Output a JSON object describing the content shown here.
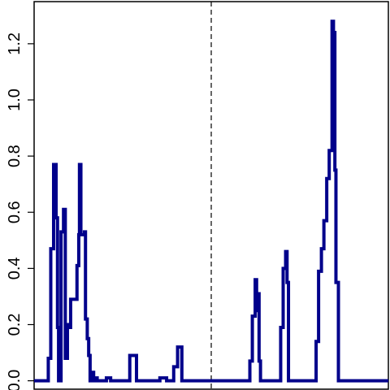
{
  "chart_data": {
    "type": "line",
    "title": "",
    "xlabel": "",
    "ylabel": "",
    "ylim": [
      -0.03,
      1.35
    ],
    "xlim": [
      0,
      100
    ],
    "x_ticks_labeled": false,
    "y_ticks": [
      0.0,
      0.2,
      0.4,
      0.6,
      0.8,
      1.0,
      1.2
    ],
    "y_tick_labels": [
      "0.0",
      "0.2",
      "0.4",
      "0.6",
      "0.8",
      "1.0",
      "1.2"
    ],
    "grid": false,
    "line_style": "step",
    "reference_line": {
      "x": 50,
      "style": "dashed",
      "color": "#000000"
    },
    "series": [
      {
        "color": "#00008B",
        "x": [
          0,
          4.0,
          4.7,
          5.5,
          6.2,
          6.6,
          6.9,
          7.6,
          8.3,
          8.8,
          9.4,
          9.6,
          10.3,
          12.1,
          12.6,
          12.8,
          13.2,
          14.2,
          14.5,
          15.0,
          15.4,
          15.8,
          16.1,
          16.5,
          16.8,
          17.1,
          17.4,
          17.8,
          18.1,
          18.5,
          18.9,
          19.3,
          20.4,
          21.6,
          23.4,
          25.0,
          27.0,
          28.9,
          35.5,
          37.4,
          39.4,
          40.5,
          41.7,
          43.5,
          46.4,
          48.4,
          60.9,
          61.6,
          62.4,
          62.8,
          63.2,
          63.5,
          63.9,
          64.3,
          65.0,
          69.6,
          70.3,
          71.0,
          71.4,
          71.8,
          72.6,
          79.6,
          80.3,
          81.1,
          81.8,
          82.6,
          83.3,
          84.1,
          84.5,
          84.9,
          85.2,
          85.9,
          86.7,
          87.4,
          100
        ],
        "y": [
          0.0,
          0.08,
          0.47,
          0.77,
          0.58,
          0.19,
          0.0,
          0.53,
          0.61,
          0.08,
          0.2,
          0.19,
          0.29,
          0.41,
          0.52,
          0.77,
          0.52,
          0.53,
          0.22,
          0.15,
          0.09,
          0.0,
          0.0,
          0.03,
          0.0,
          0.0,
          0.01,
          0.0,
          0.0,
          0.0,
          0.0,
          0.0,
          0.01,
          0.0,
          0.0,
          0.0,
          0.09,
          0.0,
          0.01,
          0.0,
          0.05,
          0.12,
          0.0,
          0.0,
          0.0,
          0.0,
          0.07,
          0.23,
          0.36,
          0.25,
          0.31,
          0.07,
          0.0,
          0.0,
          0.0,
          0.19,
          0.4,
          0.46,
          0.35,
          0.0,
          0.0,
          0.14,
          0.39,
          0.47,
          0.57,
          0.72,
          0.82,
          1.28,
          1.24,
          0.75,
          0.35,
          0.0,
          0.0,
          0.0,
          0.0
        ]
      }
    ]
  }
}
